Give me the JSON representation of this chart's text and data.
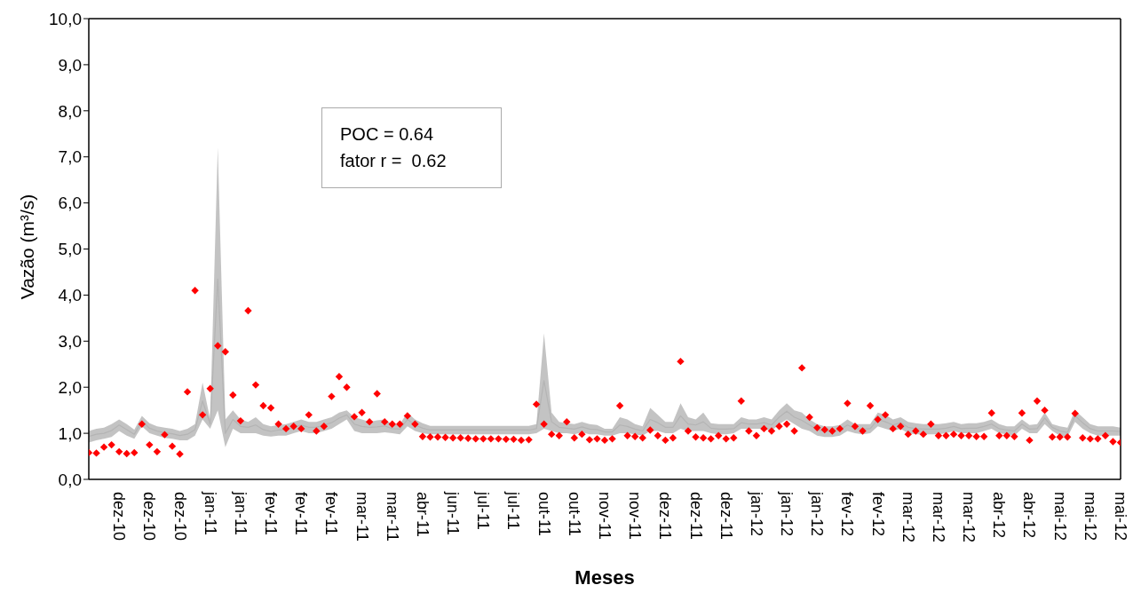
{
  "chart_data": {
    "type": "scatter",
    "ylabel": "Vazão (m³/s)",
    "xlabel": "Meses",
    "line_style": "solid",
    "annotations": [
      "POC = 0.64",
      "fator r =  0.62"
    ],
    "ylim": [
      0,
      10
    ],
    "yticks": [
      {
        "value": 0,
        "label": "0,0"
      },
      {
        "value": 1,
        "label": "1,0"
      },
      {
        "value": 2,
        "label": "2,0"
      },
      {
        "value": 3,
        "label": "3,0"
      },
      {
        "value": 4,
        "label": "4,0"
      },
      {
        "value": 5,
        "label": "5,0"
      },
      {
        "value": 6,
        "label": "6,0"
      },
      {
        "value": 7,
        "label": "7,0"
      },
      {
        "value": 8,
        "label": "8,0"
      },
      {
        "value": 9,
        "label": "9,0"
      },
      {
        "value": 10,
        "label": "10,0"
      }
    ],
    "categories": [
      null,
      null,
      null,
      null,
      "dez-10",
      null,
      null,
      null,
      "dez-10",
      null,
      null,
      null,
      "dez-10",
      null,
      null,
      null,
      "jan-11",
      null,
      null,
      null,
      "jan-11",
      null,
      null,
      null,
      "fev-11",
      null,
      null,
      null,
      "fev-11",
      null,
      null,
      null,
      "fev-11",
      null,
      null,
      null,
      "mar-11",
      null,
      null,
      null,
      "mar-11",
      null,
      null,
      null,
      "abr-11",
      null,
      null,
      null,
      "jun-11",
      null,
      null,
      null,
      "jul-11",
      null,
      null,
      null,
      "jul-11",
      null,
      null,
      null,
      "out-11",
      null,
      null,
      null,
      "out-11",
      null,
      null,
      null,
      "nov-11",
      null,
      null,
      null,
      "nov-11",
      null,
      null,
      null,
      "dez-11",
      null,
      null,
      null,
      "dez-11",
      null,
      null,
      null,
      "dez-11",
      null,
      null,
      null,
      "jan-12",
      null,
      null,
      null,
      "jan-12",
      null,
      null,
      null,
      "jan-12",
      null,
      null,
      null,
      "fev-12",
      null,
      null,
      null,
      "fev-12",
      null,
      null,
      null,
      "mar-12",
      null,
      null,
      null,
      "mar-12",
      null,
      null,
      null,
      "mar-12",
      null,
      null,
      null,
      "abr-12",
      null,
      null,
      null,
      "abr-12",
      null,
      null,
      null,
      "mai-12",
      null,
      null,
      null,
      "mai-12",
      null,
      null,
      null,
      "mai-12"
    ],
    "series": [
      {
        "type": "line",
        "color": "#b4b4b4",
        "values": [
          0.93,
          0.98,
          1.0,
          1.06,
          1.18,
          1.08,
          0.98,
          1.27,
          1.11,
          1.05,
          1.01,
          0.99,
          0.95,
          0.98,
          1.08,
          1.7,
          1.2,
          4.35,
          1.0,
          1.3,
          1.15,
          1.13,
          1.18,
          1.08,
          1.04,
          1.07,
          1.08,
          1.13,
          1.18,
          1.13,
          1.13,
          1.18,
          1.23,
          1.33,
          1.4,
          1.2,
          1.15,
          1.13,
          1.14,
          1.16,
          1.1,
          1.09,
          1.3,
          1.18,
          1.11,
          1.07,
          1.07,
          1.07,
          1.07,
          1.07,
          1.07,
          1.07,
          1.07,
          1.07,
          1.07,
          1.07,
          1.07,
          1.07,
          1.07,
          1.1,
          2.14,
          1.25,
          1.13,
          1.11,
          1.09,
          1.14,
          1.09,
          1.08,
          1.03,
          1.03,
          1.18,
          1.15,
          1.09,
          1.05,
          1.3,
          1.23,
          1.13,
          1.13,
          1.38,
          1.2,
          1.18,
          1.25,
          1.11,
          1.09,
          1.09,
          1.1,
          1.23,
          1.2,
          1.2,
          1.23,
          1.18,
          1.35,
          1.48,
          1.35,
          1.28,
          1.18,
          1.08,
          1.04,
          1.04,
          1.07,
          1.18,
          1.1,
          1.09,
          1.1,
          1.3,
          1.25,
          1.18,
          1.23,
          1.13,
          1.1,
          1.09,
          1.09,
          1.09,
          1.11,
          1.15,
          1.1,
          1.11,
          1.11,
          1.15,
          1.2,
          1.1,
          1.07,
          1.05,
          1.2,
          1.09,
          1.1,
          1.33,
          1.13,
          1.05,
          1.02,
          1.38,
          1.23,
          1.1,
          1.05,
          1.05,
          1.05,
          1.04
        ],
        "lower": [
          0.8,
          0.85,
          0.88,
          0.92,
          1.05,
          0.95,
          0.88,
          1.15,
          1.0,
          0.95,
          0.9,
          0.88,
          0.85,
          0.85,
          0.95,
          1.3,
          1.1,
          1.5,
          0.7,
          1.1,
          1.0,
          1.0,
          1.0,
          0.95,
          0.93,
          0.95,
          0.95,
          1.0,
          1.05,
          1.0,
          1.0,
          1.05,
          1.1,
          1.2,
          1.3,
          1.05,
          1.0,
          1.0,
          1.0,
          1.02,
          1.0,
          0.98,
          1.15,
          1.05,
          1.0,
          0.98,
          0.98,
          0.98,
          0.98,
          0.98,
          0.98,
          0.98,
          0.98,
          0.98,
          0.98,
          0.98,
          0.98,
          0.98,
          0.98,
          1.0,
          1.1,
          1.05,
          1.0,
          1.0,
          0.98,
          1.02,
          0.98,
          0.98,
          0.95,
          0.95,
          1.0,
          1.0,
          0.98,
          0.95,
          1.05,
          1.05,
          1.0,
          1.0,
          1.1,
          1.05,
          1.05,
          1.05,
          1.0,
          0.98,
          0.98,
          1.0,
          1.1,
          1.1,
          1.1,
          1.1,
          1.05,
          1.2,
          1.3,
          1.2,
          1.1,
          1.05,
          0.95,
          0.92,
          0.92,
          0.95,
          1.05,
          1.0,
          0.98,
          1.0,
          1.15,
          1.1,
          1.05,
          1.1,
          1.0,
          0.98,
          0.98,
          0.98,
          0.98,
          1.0,
          1.05,
          1.0,
          1.0,
          1.0,
          1.05,
          1.1,
          1.0,
          0.98,
          0.95,
          1.1,
          1.0,
          1.0,
          1.2,
          1.05,
          0.95,
          0.92,
          1.25,
          1.1,
          1.0,
          0.95,
          0.95,
          0.95,
          0.95
        ],
        "upper": [
          1.05,
          1.1,
          1.12,
          1.2,
          1.3,
          1.2,
          1.08,
          1.38,
          1.22,
          1.15,
          1.12,
          1.1,
          1.05,
          1.1,
          1.2,
          2.1,
          1.3,
          7.2,
          1.3,
          1.5,
          1.3,
          1.25,
          1.35,
          1.2,
          1.15,
          1.18,
          1.2,
          1.25,
          1.3,
          1.25,
          1.25,
          1.3,
          1.35,
          1.45,
          1.5,
          1.35,
          1.3,
          1.25,
          1.28,
          1.3,
          1.2,
          1.2,
          1.45,
          1.3,
          1.22,
          1.16,
          1.16,
          1.16,
          1.16,
          1.16,
          1.16,
          1.16,
          1.16,
          1.16,
          1.16,
          1.16,
          1.16,
          1.16,
          1.16,
          1.2,
          3.17,
          1.45,
          1.25,
          1.22,
          1.2,
          1.25,
          1.2,
          1.18,
          1.1,
          1.1,
          1.35,
          1.3,
          1.2,
          1.15,
          1.55,
          1.4,
          1.25,
          1.25,
          1.65,
          1.35,
          1.3,
          1.45,
          1.22,
          1.2,
          1.2,
          1.2,
          1.35,
          1.3,
          1.3,
          1.35,
          1.3,
          1.5,
          1.65,
          1.5,
          1.45,
          1.3,
          1.2,
          1.15,
          1.15,
          1.18,
          1.3,
          1.2,
          1.2,
          1.2,
          1.45,
          1.4,
          1.3,
          1.35,
          1.25,
          1.22,
          1.2,
          1.2,
          1.2,
          1.22,
          1.25,
          1.2,
          1.22,
          1.22,
          1.25,
          1.3,
          1.2,
          1.15,
          1.15,
          1.3,
          1.18,
          1.2,
          1.45,
          1.2,
          1.15,
          1.12,
          1.5,
          1.35,
          1.2,
          1.15,
          1.15,
          1.15,
          1.12
        ]
      },
      {
        "color": "#ff0000",
        "marker": "diamond",
        "values": [
          0.58,
          0.57,
          0.7,
          0.75,
          0.6,
          0.56,
          0.58,
          1.2,
          0.75,
          0.6,
          0.97,
          0.72,
          0.55,
          1.9,
          4.1,
          1.4,
          1.97,
          2.9,
          2.77,
          1.83,
          1.27,
          3.66,
          2.05,
          1.6,
          1.55,
          1.2,
          1.1,
          1.15,
          1.1,
          1.4,
          1.05,
          1.15,
          1.8,
          2.23,
          2.0,
          1.36,
          1.45,
          1.25,
          1.86,
          1.25,
          1.2,
          1.2,
          1.38,
          1.2,
          0.93,
          0.92,
          0.92,
          0.91,
          0.9,
          0.9,
          0.89,
          0.88,
          0.88,
          0.88,
          0.88,
          0.87,
          0.87,
          0.85,
          0.86,
          1.63,
          1.2,
          0.98,
          0.95,
          1.25,
          0.9,
          0.98,
          0.86,
          0.88,
          0.85,
          0.88,
          1.6,
          0.95,
          0.93,
          0.9,
          1.07,
          0.95,
          0.85,
          0.9,
          2.56,
          1.05,
          0.92,
          0.9,
          0.88,
          0.95,
          0.88,
          0.9,
          1.7,
          1.05,
          0.95,
          1.1,
          1.05,
          1.15,
          1.2,
          1.05,
          2.42,
          1.35,
          1.12,
          1.08,
          1.05,
          1.1,
          1.65,
          1.15,
          1.05,
          1.6,
          1.3,
          1.4,
          1.1,
          1.15,
          0.98,
          1.05,
          0.98,
          1.2,
          0.95,
          0.95,
          0.98,
          0.95,
          0.95,
          0.93,
          0.93,
          1.44,
          0.95,
          0.95,
          0.93,
          1.44,
          0.85,
          1.7,
          1.5,
          0.92,
          0.92,
          0.92,
          1.43,
          0.9,
          0.88,
          0.88,
          0.95,
          0.82,
          0.8
        ]
      }
    ]
  }
}
